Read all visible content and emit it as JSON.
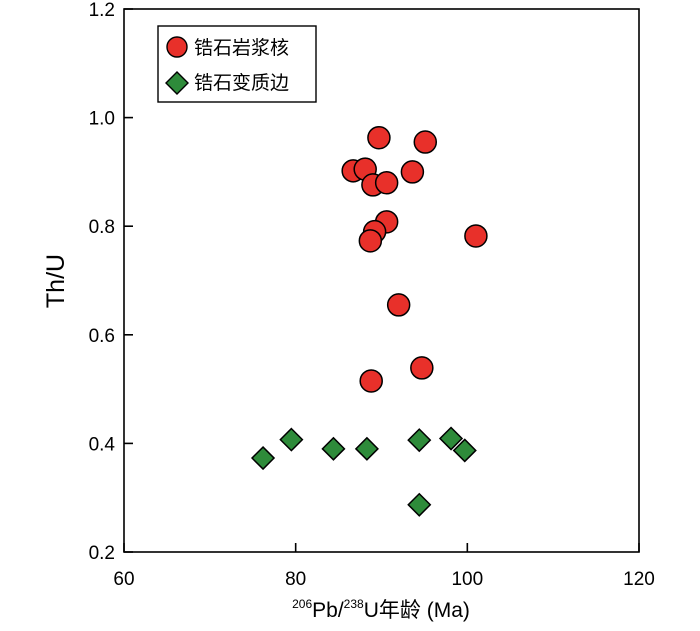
{
  "chart_data": {
    "type": "scatter",
    "xlabel": {
      "sup1": "206",
      "part1": "Pb/",
      "sup2": "238",
      "part2": "U年龄 (Ma)"
    },
    "ylabel": "Th/U",
    "xlim": [
      60,
      120
    ],
    "ylim": [
      0.2,
      1.2
    ],
    "xticks": [
      "60",
      "80",
      "100",
      "120"
    ],
    "yticks": [
      "0.2",
      "0.4",
      "0.6",
      "0.8",
      "1.0",
      "1.2"
    ],
    "grid": false,
    "legend_position": "top-left",
    "series": [
      {
        "name": "锆石岩浆核",
        "marker": "circle",
        "color": "#e8302a",
        "points": [
          {
            "x": 89.7,
            "y": 0.963
          },
          {
            "x": 95.1,
            "y": 0.955
          },
          {
            "x": 86.7,
            "y": 0.902
          },
          {
            "x": 88.1,
            "y": 0.905
          },
          {
            "x": 93.6,
            "y": 0.9
          },
          {
            "x": 89.0,
            "y": 0.876
          },
          {
            "x": 90.6,
            "y": 0.88
          },
          {
            "x": 90.6,
            "y": 0.808
          },
          {
            "x": 89.2,
            "y": 0.79
          },
          {
            "x": 88.7,
            "y": 0.773
          },
          {
            "x": 101.0,
            "y": 0.782
          },
          {
            "x": 92.0,
            "y": 0.655
          },
          {
            "x": 88.8,
            "y": 0.515
          },
          {
            "x": 94.7,
            "y": 0.539
          }
        ]
      },
      {
        "name": "锆石变质边",
        "marker": "diamond",
        "color": "#2e8b3a",
        "points": [
          {
            "x": 76.2,
            "y": 0.373
          },
          {
            "x": 79.5,
            "y": 0.407
          },
          {
            "x": 84.4,
            "y": 0.39
          },
          {
            "x": 88.3,
            "y": 0.39
          },
          {
            "x": 94.4,
            "y": 0.406
          },
          {
            "x": 98.1,
            "y": 0.409
          },
          {
            "x": 99.7,
            "y": 0.387
          },
          {
            "x": 94.4,
            "y": 0.287
          }
        ]
      }
    ]
  }
}
